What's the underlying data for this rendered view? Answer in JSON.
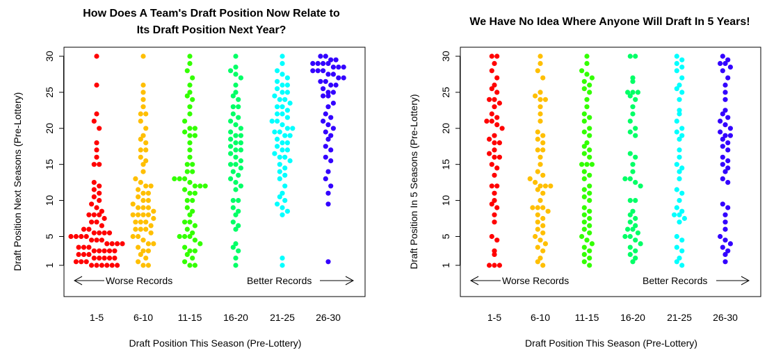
{
  "chart_data": [
    {
      "type": "scatter",
      "title": "How Does A Team's Draft Position Now Relate to\nIts Draft Position Next Year?",
      "xlabel": "Draft Position This Season (Pre-Lottery)",
      "ylabel": "Draft Position Next Seasons (Pre-Lottery)",
      "categories": [
        "1-5",
        "6-10",
        "11-15",
        "16-20",
        "21-25",
        "26-30"
      ],
      "colors": [
        "#ff0000",
        "#ffbf00",
        "#33ff00",
        "#00ff66",
        "#00ffff",
        "#3300ff"
      ],
      "yticks": [
        1,
        5,
        10,
        15,
        20,
        25,
        30
      ],
      "ylim": [
        1,
        30
      ],
      "annotations": {
        "left": "Worse Records",
        "right": "Better Records"
      },
      "series": [
        {
          "name": "1-5",
          "values": [
            30,
            26,
            22,
            21,
            20,
            18,
            17,
            16,
            15,
            15,
            12.5,
            12,
            11.5,
            11,
            10.5,
            10,
            9.5,
            9,
            8.5,
            8,
            8,
            8,
            7.5,
            7,
            7,
            6.5,
            6,
            6,
            5.5,
            5.5,
            5.5,
            5.5,
            5,
            5,
            5,
            5,
            4.5,
            4.5,
            4.5,
            4,
            4,
            4,
            4,
            3.5,
            3.5,
            3.5,
            3,
            3,
            3,
            3,
            3,
            2.5,
            2.5,
            2.5,
            2,
            2,
            2,
            2,
            2,
            1.5,
            1.5,
            1.5,
            1,
            1,
            1,
            1,
            1,
            1
          ]
        },
        {
          "name": "6-10",
          "values": [
            30,
            26,
            25,
            24,
            23,
            22,
            22,
            21,
            20,
            19,
            18.5,
            18,
            17,
            17,
            16,
            15.5,
            15,
            14,
            13,
            12.5,
            12,
            12,
            11.5,
            11,
            11,
            10.5,
            10,
            10,
            9.5,
            9,
            9,
            9,
            8.5,
            8,
            8,
            8,
            8,
            7.5,
            7,
            7,
            7,
            6.5,
            6,
            6,
            6,
            5.5,
            5,
            5,
            4.5,
            4,
            4,
            3.5,
            3,
            3,
            2.5,
            2,
            1.5,
            1,
            1
          ]
        },
        {
          "name": "11-15",
          "values": [
            30,
            29,
            28,
            27,
            26,
            25,
            24.5,
            24,
            23,
            22,
            21,
            20,
            20,
            19.5,
            19,
            19,
            18,
            17,
            16,
            15,
            15,
            14,
            14,
            13,
            13,
            13,
            12.5,
            12,
            12,
            12,
            11.5,
            11,
            11,
            10,
            10,
            9,
            8.5,
            8,
            7,
            7,
            6.5,
            6,
            5.5,
            5,
            5,
            5,
            4.5,
            4,
            3.5,
            3,
            3,
            2.5,
            2,
            1.5,
            1,
            1
          ]
        },
        {
          "name": "16-20",
          "values": [
            30,
            28.5,
            28,
            27.5,
            27,
            26,
            25,
            24.5,
            24,
            23,
            23,
            22,
            21.5,
            21,
            20.5,
            20,
            19.5,
            19,
            19,
            18.5,
            18,
            18,
            17.5,
            17,
            17,
            16.5,
            16,
            15.5,
            15,
            15,
            14.5,
            14,
            13.5,
            13,
            12.5,
            12,
            11.5,
            10,
            10,
            9,
            8.5,
            8,
            7,
            6.5,
            6,
            4,
            3.5,
            3,
            2,
            1
          ]
        },
        {
          "name": "21-25",
          "values": [
            30,
            29,
            28,
            27.5,
            27,
            26.5,
            26,
            26,
            25.5,
            25,
            25,
            24.5,
            24,
            24,
            23.5,
            23,
            23,
            22.5,
            22,
            22,
            21.5,
            21,
            21,
            20.5,
            20,
            20,
            19.5,
            19.5,
            19,
            19,
            18.5,
            18,
            18,
            17.5,
            17,
            17,
            16.5,
            16,
            16,
            15.5,
            15,
            14.5,
            14,
            13.5,
            13,
            12,
            11,
            10.5,
            10,
            9.5,
            9,
            8.5,
            8,
            2,
            1
          ]
        },
        {
          "name": "26-30",
          "values": [
            30,
            30,
            29.5,
            29.5,
            29,
            29,
            29,
            29,
            28.5,
            28.5,
            28.5,
            28,
            28,
            28,
            27.5,
            27.5,
            27,
            27,
            26.5,
            26.5,
            26,
            26,
            25.5,
            25,
            25,
            24.5,
            24.5,
            23.5,
            23,
            22,
            21.5,
            21,
            20.5,
            20,
            19.5,
            19,
            18.5,
            17.5,
            17,
            16,
            15.5,
            14,
            13,
            12,
            11,
            9.5,
            1.5
          ]
        }
      ]
    },
    {
      "type": "scatter",
      "title": "We Have No Idea Where Anyone Will Draft In 5 Years!",
      "xlabel": "Draft Position This Season (Pre-Lottery)",
      "ylabel": "Draft Position In 5 Seasons (Pre-Lottery)",
      "categories": [
        "1-5",
        "6-10",
        "11-15",
        "16-20",
        "21-25",
        "26-30"
      ],
      "colors": [
        "#ff0000",
        "#ffbf00",
        "#33ff00",
        "#00ff66",
        "#00ffff",
        "#3300ff"
      ],
      "yticks": [
        1,
        5,
        10,
        15,
        20,
        25,
        30
      ],
      "ylim": [
        1,
        30
      ],
      "annotations": {
        "left": "Worse Records",
        "right": "Better Records"
      },
      "series": [
        {
          "name": "1-5",
          "values": [
            30,
            30,
            29,
            28,
            27,
            26,
            25.5,
            25,
            24,
            24,
            23.5,
            23,
            22,
            21.5,
            21,
            21,
            20.5,
            20,
            19,
            18.5,
            18,
            18,
            17,
            16.5,
            16,
            16,
            15,
            14.5,
            13.5,
            12,
            12,
            11,
            10,
            9.5,
            9,
            8,
            7,
            5,
            4.5,
            3,
            2.5,
            1,
            1,
            1
          ]
        },
        {
          "name": "6-10",
          "values": [
            30,
            29,
            28,
            27,
            25,
            24.5,
            24,
            24,
            23,
            22,
            21,
            19.5,
            19,
            18.5,
            18,
            17,
            17,
            16,
            15,
            14,
            13.5,
            13,
            12.5,
            12,
            12,
            12,
            11.5,
            11,
            10,
            9,
            9,
            9,
            8.5,
            8,
            7.5,
            7,
            6.5,
            6,
            5.5,
            5,
            4.5,
            4,
            3.5,
            3,
            2,
            1.5,
            1
          ]
        },
        {
          "name": "11-15",
          "values": [
            30,
            29,
            28,
            27.5,
            27,
            26.5,
            26,
            25.5,
            25,
            24,
            23,
            22,
            21.5,
            21,
            20,
            19.5,
            19,
            18,
            17.5,
            17,
            16.5,
            16,
            15,
            15,
            15,
            14,
            13.5,
            13,
            12,
            11.5,
            11,
            10.5,
            10,
            9,
            8.5,
            8,
            7.5,
            7,
            6.5,
            6,
            5.5,
            5,
            4.5,
            4,
            3.5,
            3,
            2.5,
            2,
            1.5,
            1
          ]
        },
        {
          "name": "16-20",
          "values": [
            30,
            30,
            27,
            26.5,
            25,
            25,
            25,
            24.5,
            24,
            23,
            22,
            21,
            20,
            19.5,
            19,
            16.5,
            16,
            15,
            14,
            13,
            13,
            12.5,
            12,
            10,
            10,
            8.5,
            8,
            7.5,
            7,
            6.5,
            6,
            6,
            5.5,
            5,
            5,
            4.5,
            4,
            3.5,
            3,
            2.5,
            2,
            1.5
          ]
        },
        {
          "name": "21-25",
          "values": [
            30,
            29.5,
            29,
            28.5,
            28,
            27,
            26,
            25.5,
            25,
            24,
            22.5,
            22,
            21,
            20,
            19.5,
            19,
            18.5,
            17,
            16,
            15,
            14.5,
            14,
            13,
            11.5,
            11,
            10,
            9,
            8.5,
            8,
            8,
            7.5,
            7,
            5,
            4.5,
            3.5,
            3,
            2,
            1.5,
            1
          ]
        },
        {
          "name": "26-30",
          "values": [
            30,
            29.5,
            29,
            29,
            28.5,
            28,
            27,
            26,
            25,
            24,
            22.5,
            22,
            21.5,
            21,
            20.5,
            20,
            19.5,
            19,
            19,
            18.5,
            18,
            17.5,
            17,
            16,
            15.5,
            15,
            14.5,
            14,
            13,
            12.5,
            9.5,
            9,
            8,
            7,
            6,
            5,
            4.5,
            4,
            3.5,
            3,
            2.5,
            1.5
          ]
        }
      ]
    }
  ]
}
